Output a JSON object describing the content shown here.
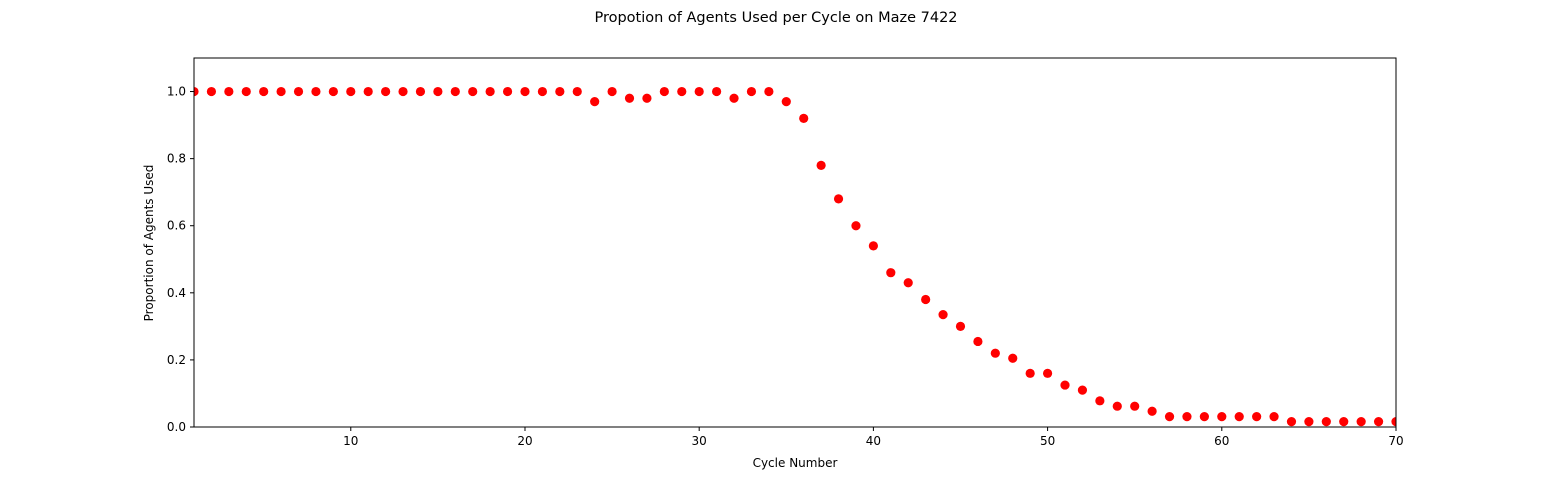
{
  "chart_data": {
    "type": "scatter",
    "title": "Propotion of Agents Used per Cycle on Maze 7422",
    "xlabel": "Cycle Number",
    "ylabel": "Proportion of Agents Used",
    "xlim": [
      1,
      70
    ],
    "ylim": [
      0,
      1.1
    ],
    "xticks": [
      10,
      20,
      30,
      40,
      50,
      60,
      70
    ],
    "yticks": [
      0.0,
      0.2,
      0.4,
      0.6,
      0.8,
      1.0
    ],
    "ytick_labels": [
      "0.0",
      "0.2",
      "0.4",
      "0.6",
      "0.8",
      "1.0"
    ],
    "grid": false,
    "marker_color": "#ff0000",
    "series": [
      {
        "x": [
          1,
          2,
          3,
          4,
          5,
          6,
          7,
          8,
          9,
          10,
          11,
          12,
          13,
          14,
          15,
          16,
          17,
          18,
          19,
          20,
          21,
          22,
          23,
          24,
          25,
          26,
          27,
          28,
          29,
          30,
          31,
          32,
          33,
          34,
          35,
          36,
          37,
          38,
          39,
          40,
          41,
          42,
          43,
          44,
          45,
          46,
          47,
          48,
          49,
          50,
          51,
          52,
          53,
          54,
          55,
          56,
          57,
          58,
          59,
          60,
          61,
          62,
          63,
          64,
          65,
          66,
          67,
          68,
          69,
          70
        ],
        "y": [
          1.0,
          1.0,
          1.0,
          1.0,
          1.0,
          1.0,
          1.0,
          1.0,
          1.0,
          1.0,
          1.0,
          1.0,
          1.0,
          1.0,
          1.0,
          1.0,
          1.0,
          1.0,
          1.0,
          1.0,
          1.0,
          1.0,
          1.0,
          0.97,
          1.0,
          0.98,
          0.98,
          1.0,
          1.0,
          1.0,
          1.0,
          0.98,
          1.0,
          1.0,
          0.97,
          0.92,
          0.78,
          0.68,
          0.6,
          0.54,
          0.46,
          0.43,
          0.38,
          0.335,
          0.3,
          0.255,
          0.22,
          0.205,
          0.16,
          0.16,
          0.125,
          0.11,
          0.078,
          0.062,
          0.062,
          0.047,
          0.031,
          0.031,
          0.031,
          0.031,
          0.031,
          0.031,
          0.031,
          0.016,
          0.016,
          0.016,
          0.016,
          0.016,
          0.016,
          0.016
        ]
      }
    ]
  }
}
